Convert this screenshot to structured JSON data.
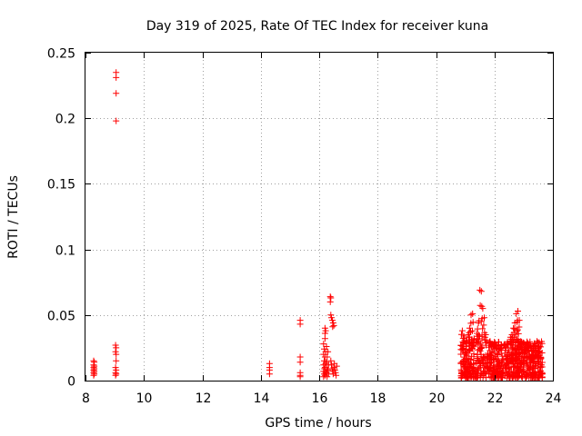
{
  "chart_data": {
    "type": "scatter",
    "title": "Day 319 of 2025, Rate Of TEC Index for receiver kuna",
    "xlabel": "GPS time / hours",
    "ylabel": "ROTI / TECUs",
    "xlim": [
      8,
      24
    ],
    "ylim": [
      0,
      0.25
    ],
    "xticks": [
      8,
      10,
      12,
      14,
      16,
      18,
      20,
      22,
      24
    ],
    "yticks": [
      0,
      0.05,
      0.1,
      0.15,
      0.2,
      0.25
    ],
    "ytick_labels": [
      "0",
      "0.05",
      "0.1",
      "0.15",
      "0.2",
      "0.25"
    ],
    "grid": true,
    "marker": "+",
    "color": "#ff0000",
    "series": [
      {
        "name": "ROTI",
        "points": [
          [
            8.28,
            0.015
          ],
          [
            8.28,
            0.012
          ],
          [
            8.28,
            0.01
          ],
          [
            8.28,
            0.008
          ],
          [
            8.28,
            0.006
          ],
          [
            8.28,
            0.004
          ],
          [
            8.3,
            0.014
          ],
          [
            8.3,
            0.011
          ],
          [
            8.3,
            0.009
          ],
          [
            8.3,
            0.007
          ],
          [
            8.3,
            0.005
          ],
          [
            9.05,
            0.235
          ],
          [
            9.05,
            0.231
          ],
          [
            9.05,
            0.219
          ],
          [
            9.05,
            0.198
          ],
          [
            9.03,
            0.027
          ],
          [
            9.05,
            0.025
          ],
          [
            9.03,
            0.022
          ],
          [
            9.05,
            0.02
          ],
          [
            9.05,
            0.015
          ],
          [
            9.03,
            0.01
          ],
          [
            9.05,
            0.008
          ],
          [
            9.03,
            0.006
          ],
          [
            9.05,
            0.005
          ],
          [
            9.03,
            0.004
          ],
          [
            14.3,
            0.013
          ],
          [
            14.3,
            0.01
          ],
          [
            14.3,
            0.008
          ],
          [
            14.3,
            0.005
          ],
          [
            15.35,
            0.046
          ],
          [
            15.35,
            0.043
          ],
          [
            15.35,
            0.018
          ],
          [
            15.35,
            0.014
          ],
          [
            15.35,
            0.006
          ],
          [
            15.35,
            0.004
          ],
          [
            15.35,
            0.003
          ],
          [
            16.15,
            0.028
          ],
          [
            16.17,
            0.024
          ],
          [
            16.15,
            0.02
          ],
          [
            16.17,
            0.015
          ],
          [
            16.15,
            0.012
          ],
          [
            16.18,
            0.009
          ],
          [
            16.15,
            0.007
          ],
          [
            16.17,
            0.005
          ],
          [
            16.15,
            0.003
          ],
          [
            16.2,
            0.04
          ],
          [
            16.2,
            0.036
          ],
          [
            16.22,
            0.038
          ],
          [
            16.2,
            0.032
          ],
          [
            16.22,
            0.022
          ],
          [
            16.2,
            0.018
          ],
          [
            16.22,
            0.013
          ],
          [
            16.2,
            0.01
          ],
          [
            16.22,
            0.006
          ],
          [
            16.2,
            0.004
          ],
          [
            16.25,
            0.026
          ],
          [
            16.27,
            0.018
          ],
          [
            16.25,
            0.014
          ],
          [
            16.27,
            0.009
          ],
          [
            16.25,
            0.006
          ],
          [
            16.27,
            0.003
          ],
          [
            16.3,
            0.022
          ],
          [
            16.32,
            0.012
          ],
          [
            16.3,
            0.008
          ],
          [
            16.32,
            0.005
          ],
          [
            16.38,
            0.064
          ],
          [
            16.4,
            0.063
          ],
          [
            16.38,
            0.06
          ],
          [
            16.4,
            0.05
          ],
          [
            16.42,
            0.048
          ],
          [
            16.45,
            0.046
          ],
          [
            16.48,
            0.044
          ],
          [
            16.46,
            0.041
          ],
          [
            16.5,
            0.042
          ],
          [
            16.4,
            0.015
          ],
          [
            16.42,
            0.012
          ],
          [
            16.44,
            0.009
          ],
          [
            16.46,
            0.007
          ],
          [
            16.48,
            0.005
          ],
          [
            16.5,
            0.01
          ],
          [
            16.52,
            0.013
          ],
          [
            16.54,
            0.008
          ],
          [
            16.56,
            0.006
          ],
          [
            16.58,
            0.004
          ],
          [
            16.6,
            0.011
          ]
        ]
      }
    ],
    "dense_region": {
      "x_range": [
        20.85,
        23.65
      ],
      "y_range": [
        0.002,
        0.03
      ]
    },
    "dense_peaks": [
      [
        20.9,
        0.038
      ],
      [
        20.95,
        0.034
      ],
      [
        21.05,
        0.03
      ],
      [
        21.1,
        0.035
      ],
      [
        21.15,
        0.04
      ],
      [
        21.2,
        0.05
      ],
      [
        21.25,
        0.051
      ],
      [
        21.3,
        0.032
      ],
      [
        21.4,
        0.036
      ],
      [
        21.45,
        0.044
      ],
      [
        21.5,
        0.069
      ],
      [
        21.55,
        0.068
      ],
      [
        21.6,
        0.055
      ],
      [
        21.65,
        0.048
      ],
      [
        21.7,
        0.035
      ],
      [
        21.85,
        0.03
      ],
      [
        21.95,
        0.026
      ],
      [
        22.05,
        0.025
      ],
      [
        22.2,
        0.024
      ],
      [
        22.35,
        0.027
      ],
      [
        22.45,
        0.028
      ],
      [
        22.55,
        0.033
      ],
      [
        22.6,
        0.035
      ],
      [
        22.65,
        0.04
      ],
      [
        22.7,
        0.044
      ],
      [
        22.75,
        0.051
      ],
      [
        22.8,
        0.053
      ],
      [
        22.85,
        0.046
      ],
      [
        22.9,
        0.03
      ],
      [
        23.05,
        0.022
      ],
      [
        23.15,
        0.025
      ],
      [
        23.2,
        0.02
      ],
      [
        23.3,
        0.016
      ],
      [
        23.5,
        0.013
      ],
      [
        23.6,
        0.012
      ]
    ]
  }
}
